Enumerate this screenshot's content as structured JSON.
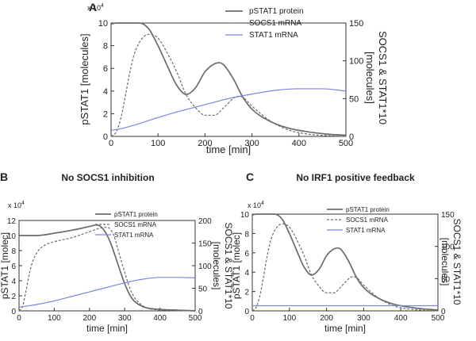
{
  "series_colors": {
    "pSTAT1 protein": "#6b6b6b",
    "SOCS1 mRNA": "#6b6b6b",
    "STAT1 mRNA": "#7b85e0"
  },
  "chart_data": [
    {
      "type": "line",
      "panel_label": "A",
      "title": "",
      "xlabel": "time [min]",
      "ylabel": "pSTAT1 [molecules]",
      "y2label_line1": "SOCS1 & STAT1*10",
      "y2label_line2": "[molecules]",
      "y_exponent": "x 10",
      "y_exponent_power": "4",
      "xlim": [
        0,
        500
      ],
      "ylim": [
        0,
        10
      ],
      "y2lim": [
        0,
        150
      ],
      "xticks": [
        "0",
        "100",
        "200",
        "300",
        "400",
        "500"
      ],
      "yticks": [
        "0",
        "2",
        "4",
        "6",
        "8",
        "10"
      ],
      "y2ticks": [
        "0",
        "50",
        "100",
        "150"
      ],
      "legend": [
        "pSTAT1 protein",
        "SOCS1 mRNA",
        "STAT1 mRNA"
      ],
      "series": [
        {
          "name": "pSTAT1 protein",
          "axis": "left",
          "x": [
            0,
            10,
            20,
            40,
            60,
            80,
            100,
            120,
            140,
            160,
            180,
            200,
            220,
            230,
            240,
            260,
            280,
            300,
            340,
            380,
            420,
            460,
            500
          ],
          "values": [
            9.9,
            10,
            10,
            10,
            10,
            9.5,
            8,
            6.2,
            4.5,
            3.7,
            4.3,
            5.7,
            6.4,
            6.5,
            6.3,
            5.1,
            3.5,
            2.4,
            1.3,
            0.7,
            0.4,
            0.2,
            0.1
          ]
        },
        {
          "name": "SOCS1 mRNA",
          "axis": "right",
          "x": [
            0,
            10,
            20,
            30,
            40,
            50,
            60,
            70,
            80,
            90,
            100,
            120,
            140,
            160,
            180,
            200,
            220,
            240,
            260,
            270,
            280,
            300,
            340,
            380,
            420,
            460,
            500
          ],
          "values": [
            0,
            5,
            22,
            52,
            85,
            110,
            124,
            132,
            135,
            134,
            130,
            110,
            85,
            55,
            38,
            28,
            28,
            38,
            50,
            53,
            52,
            40,
            20,
            8,
            3,
            1,
            0
          ]
        },
        {
          "name": "STAT1 mRNA",
          "axis": "right",
          "x": [
            0,
            20,
            50,
            100,
            150,
            200,
            250,
            300,
            350,
            400,
            450,
            500
          ],
          "values": [
            8,
            10,
            15,
            25,
            34,
            42,
            50,
            56,
            61,
            63,
            63,
            60
          ]
        }
      ]
    },
    {
      "type": "line",
      "panel_label": "B",
      "title": "No SOCS1 inhibition",
      "xlabel": "time [min]",
      "ylabel": "pSTAT1 [molec]",
      "y2label_line1": "SOCS1 & STAT1*10",
      "y2label_line2": "[molecules]",
      "y_exponent": "x 10",
      "y_exponent_power": "4",
      "xlim": [
        0,
        500
      ],
      "ylim": [
        0,
        12
      ],
      "y2lim": [
        0,
        200
      ],
      "xticks": [
        "0",
        "100",
        "200",
        "300",
        "400",
        "500"
      ],
      "yticks": [
        "0",
        "2",
        "4",
        "6",
        "8",
        "10",
        "12"
      ],
      "y2ticks": [
        "0",
        "50",
        "100",
        "150",
        "200"
      ],
      "legend": [
        "pSTAT1 protein",
        "SOCS1 mRNA",
        "STAT1 mRNA"
      ],
      "series": [
        {
          "name": "pSTAT1 protein",
          "axis": "left",
          "x": [
            0,
            50,
            100,
            150,
            200,
            220,
            240,
            260,
            280,
            300,
            320,
            350,
            400,
            450,
            500
          ],
          "values": [
            10,
            10,
            10.3,
            10.7,
            11.2,
            11.4,
            10.8,
            9,
            6.3,
            3.6,
            1.7,
            0.6,
            0.2,
            0.1,
            0
          ]
        },
        {
          "name": "SOCS1 mRNA",
          "axis": "right",
          "x": [
            0,
            10,
            20,
            30,
            40,
            50,
            60,
            80,
            100,
            150,
            200,
            230,
            250,
            260,
            270,
            280,
            300,
            320,
            350,
            400,
            500
          ],
          "values": [
            0,
            10,
            45,
            85,
            112,
            128,
            138,
            148,
            153,
            162,
            175,
            183,
            185,
            180,
            165,
            138,
            85,
            40,
            12,
            2,
            0
          ]
        },
        {
          "name": "STAT1 mRNA",
          "axis": "right",
          "x": [
            0,
            50,
            100,
            150,
            200,
            250,
            300,
            350,
            400,
            450,
            500
          ],
          "values": [
            8,
            14,
            22,
            32,
            42,
            52,
            62,
            70,
            74,
            74,
            73
          ]
        }
      ]
    },
    {
      "type": "line",
      "panel_label": "C",
      "title": "No IRF1 positive feedback",
      "xlabel": "time [min]",
      "ylabel": "pSTAT1 [molec]",
      "y2label_line1": "SOCS1 & STAT1*10",
      "y2label_line2": "[molecules]",
      "y_exponent": "x 10",
      "y_exponent_power": "4",
      "xlim": [
        0,
        500
      ],
      "ylim": [
        0,
        10
      ],
      "y2lim": [
        0,
        150
      ],
      "xticks": [
        "0",
        "100",
        "200",
        "300",
        "400",
        "500"
      ],
      "yticks": [
        "0",
        "2",
        "4",
        "6",
        "8",
        "10"
      ],
      "y2ticks": [
        "0",
        "50",
        "100",
        "150"
      ],
      "legend": [
        "pSTAT1 protein",
        "SOCS1 mRNA",
        "STAT1 mRNA"
      ],
      "series": [
        {
          "name": "pSTAT1 protein",
          "axis": "left",
          "x": [
            0,
            10,
            20,
            40,
            60,
            80,
            100,
            120,
            140,
            160,
            180,
            200,
            220,
            230,
            240,
            260,
            280,
            300,
            340,
            380,
            420,
            460,
            500
          ],
          "values": [
            9.9,
            10,
            10,
            10,
            10,
            9.5,
            8,
            6.2,
            4.5,
            3.7,
            4.3,
            5.7,
            6.4,
            6.5,
            6.3,
            5.1,
            3.5,
            2.4,
            1.3,
            0.7,
            0.4,
            0.2,
            0.1
          ]
        },
        {
          "name": "SOCS1 mRNA",
          "axis": "right",
          "x": [
            0,
            10,
            20,
            30,
            40,
            50,
            60,
            70,
            80,
            90,
            100,
            120,
            140,
            160,
            180,
            200,
            220,
            240,
            260,
            270,
            280,
            300,
            340,
            380,
            420,
            460,
            500
          ],
          "values": [
            0,
            5,
            22,
            52,
            85,
            110,
            124,
            132,
            135,
            134,
            130,
            110,
            85,
            55,
            38,
            28,
            28,
            38,
            50,
            53,
            52,
            40,
            20,
            8,
            3,
            1,
            0
          ]
        },
        {
          "name": "STAT1 mRNA",
          "axis": "right",
          "x": [
            0,
            500
          ],
          "values": [
            8,
            8
          ]
        }
      ]
    }
  ]
}
